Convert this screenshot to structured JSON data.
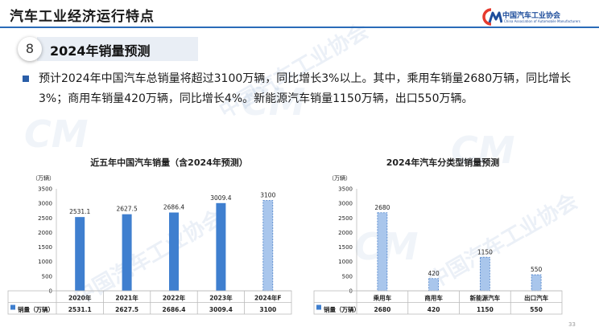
{
  "header": {
    "title": "汽车工业经济运行特点",
    "logo_cn": "中国汽车工业协会",
    "logo_en": "China Association of Automobile Manufacturers"
  },
  "section": {
    "number": "8",
    "title": "2024年销量预测"
  },
  "summary": "预计2024年中国汽车总销量将超过3100万辆，同比增长3%以上。其中，乘用车销量2680万辆，同比增长3%；商用车销量420万辆，同比增长4%。新能源汽车销量1150万辆，出口550万辆。",
  "watermark": "中国汽车工业协会",
  "page_number": "33",
  "chart_data": [
    {
      "type": "bar",
      "title": "近五年中国汽车销量（含2024年预测）",
      "unit_label": "（万辆）",
      "categories": [
        "2020年",
        "2021年",
        "2022年",
        "2023年",
        "2024年F"
      ],
      "series": [
        {
          "name": "销量（万辆）",
          "values": [
            2531.1,
            2627.5,
            2686.4,
            3009.4,
            3100
          ]
        }
      ],
      "value_labels": [
        "2531.1",
        "2627.5",
        "2686.4",
        "3009.4",
        "3100"
      ],
      "ylim": [
        0,
        3500
      ],
      "yticks": [
        0,
        500,
        1000,
        1500,
        2000,
        2500,
        3000,
        3500
      ],
      "forecast_index": [
        4
      ],
      "grid": false,
      "legend": "data-table",
      "colors": {
        "solid": "#3f7fcf",
        "forecast": "#a9c6ec"
      }
    },
    {
      "type": "bar",
      "title": "2024年汽车分类型销量预测",
      "unit_label": "（万辆）",
      "categories": [
        "乘用车",
        "商用车",
        "新能源汽车",
        "出口汽车"
      ],
      "series": [
        {
          "name": "销量（万辆）",
          "values": [
            2680,
            420,
            1150,
            550
          ]
        }
      ],
      "value_labels": [
        "2680",
        "420",
        "1150",
        "550"
      ],
      "ylim": [
        0,
        3500
      ],
      "yticks": [
        0,
        500,
        1000,
        1500,
        2000,
        2500,
        3000,
        3500
      ],
      "forecast_index": [
        0,
        1,
        2,
        3
      ],
      "grid": false,
      "legend": "data-table",
      "colors": {
        "solid": "#3f7fcf",
        "forecast": "#a9c6ec"
      }
    }
  ]
}
